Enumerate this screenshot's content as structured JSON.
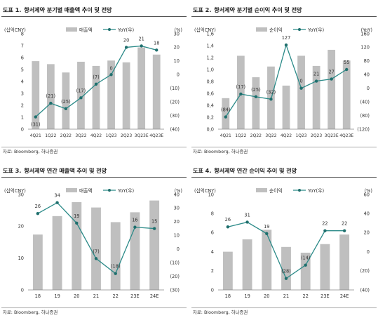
{
  "colors": {
    "bar": "#bfbfbf",
    "line": "#2b8a88",
    "marker": "#1f6f6d",
    "axis_text": "#333333"
  },
  "source_label": "자료: Bloomberg, 하나증권",
  "chart_data": [
    {
      "type": "bar+line",
      "title_num": "도표 1.",
      "title": "향서제약 분기별 매출액 추이 및 전망",
      "ylabel": "(십억CNY)",
      "y2label": "(%)",
      "bar_name": "매출액",
      "line_name": "YoY(우)",
      "categories": [
        "4Q21",
        "1Q22",
        "2Q22",
        "3Q22",
        "4Q22",
        "1Q23",
        "2Q23",
        "3Q23E",
        "4Q23E"
      ],
      "bar_values": [
        5.7,
        5.45,
        4.75,
        5.65,
        5.3,
        5.75,
        5.6,
        6.85,
        6.25
      ],
      "line_values": [
        -31,
        -21,
        -25,
        -17,
        -7,
        0,
        20,
        21,
        18
      ],
      "line_labels": [
        "(31)",
        "(21)",
        "(25)",
        "(17)",
        "(7)",
        "0",
        "20",
        "21",
        "18"
      ],
      "ylim": [
        0,
        8
      ],
      "yticks": [
        0,
        1,
        2,
        3,
        4,
        5,
        6,
        7,
        8
      ],
      "y2lim": [
        -40,
        30
      ],
      "y2ticks": [
        -40,
        -30,
        -20,
        -10,
        0,
        10,
        20,
        30
      ],
      "y2ticklabels": [
        "(40)",
        "(30)",
        "(20)",
        "(10)",
        "0",
        "10",
        "20",
        "30"
      ],
      "label_offsets": [
        [
          0,
          9
        ],
        [
          0,
          -8
        ],
        [
          0,
          -8
        ],
        [
          0,
          -8
        ],
        [
          0,
          -8
        ],
        [
          0,
          -7
        ],
        [
          0,
          -8
        ],
        [
          0,
          -8
        ],
        [
          0,
          -8
        ]
      ],
      "grid": false
    },
    {
      "type": "bar+line",
      "title_num": "도표 2.",
      "title": "향서제약 분기별 순이익 추이 및 전망",
      "ylabel": "(십억CNY)",
      "y2label": "(YoY)",
      "bar_name": "순이익",
      "line_name": "YoY(우)",
      "categories": [
        "4Q21",
        "1Q22",
        "2Q22",
        "3Q22",
        "4Q22",
        "1Q23",
        "2Q23",
        "3Q23E",
        "4Q23E"
      ],
      "bar_values": [
        0.52,
        1.23,
        0.87,
        1.05,
        0.73,
        1.23,
        1.06,
        1.33,
        1.15
      ],
      "line_values": [
        -84,
        -17,
        -25,
        -32,
        127,
        0,
        21,
        27,
        55
      ],
      "line_labels": [
        "(84)",
        "(17)",
        "(25)",
        "(32)",
        "127",
        "0",
        "21",
        "27",
        "55"
      ],
      "ylim": [
        0,
        1.6
      ],
      "yticks": [
        0,
        0.2,
        0.4,
        0.6,
        0.8,
        1.0,
        1.2,
        1.4,
        1.6
      ],
      "yticklabels": [
        "0,0",
        "0,2",
        "0,4",
        "0,6",
        "0,8",
        "1,0",
        "1,2",
        "1,4",
        "1,6"
      ],
      "y2lim": [
        -120,
        160
      ],
      "y2ticks": [
        -120,
        -80,
        -40,
        0,
        40,
        80,
        120,
        160
      ],
      "y2ticklabels": [
        "(120)",
        "(80)",
        "(40)",
        "0",
        "40",
        "80",
        "120",
        "160"
      ],
      "label_offsets": [
        [
          0,
          -8
        ],
        [
          0,
          -8
        ],
        [
          0,
          -8
        ],
        [
          0,
          -8
        ],
        [
          0,
          -8
        ],
        [
          0,
          -8
        ],
        [
          0,
          -8
        ],
        [
          0,
          -8
        ],
        [
          0,
          -8
        ]
      ],
      "grid": false
    },
    {
      "type": "bar+line",
      "title_num": "도표 3.",
      "title": "향서제약 연간 매출액 추이 및 전망",
      "ylabel": "(십억CNY)",
      "y2label": "(%)",
      "bar_name": "매출액",
      "line_name": "YoY(우)",
      "categories": [
        "18",
        "19",
        "20",
        "21",
        "22",
        "23E",
        "24E"
      ],
      "bar_values": [
        17.4,
        23.2,
        27.6,
        25.9,
        21.3,
        24.4,
        28.1
      ],
      "line_values": [
        26,
        34,
        19,
        -7,
        -18,
        16,
        15
      ],
      "line_labels": [
        "26",
        "34",
        "19",
        "(7)",
        "(18)",
        "16",
        "15"
      ],
      "ylim": [
        0,
        30
      ],
      "yticks": [
        0,
        10,
        20,
        30
      ],
      "y2lim": [
        -30,
        40
      ],
      "y2ticks": [
        -30,
        -20,
        -10,
        0,
        10,
        20,
        30,
        40
      ],
      "y2ticklabels": [
        "(30)",
        "(20)",
        "(10)",
        "0",
        "10",
        "20",
        "30",
        "40"
      ],
      "label_offsets": [
        [
          0,
          -8
        ],
        [
          0,
          -8
        ],
        [
          0,
          -8
        ],
        [
          0,
          -8
        ],
        [
          0,
          -8
        ],
        [
          0,
          -8
        ],
        [
          0,
          -8
        ]
      ],
      "grid": false
    },
    {
      "type": "bar+line",
      "title_num": "도표 4.",
      "title": "향서제약 연간 순이익 추이 및 전망",
      "ylabel": "(십억CNY)",
      "y2label": "(%)",
      "bar_name": "순이익",
      "line_name": "YoY(우)",
      "categories": [
        "18",
        "19",
        "20",
        "21",
        "22",
        "23E",
        "24E"
      ],
      "bar_values": [
        4.0,
        5.3,
        6.3,
        4.5,
        3.9,
        4.8,
        5.8
      ],
      "line_values": [
        26,
        31,
        19,
        -28,
        -14,
        22,
        22
      ],
      "line_labels": [
        "26",
        "31",
        "19",
        "(28)",
        "(14)",
        "22",
        "22"
      ],
      "ylim": [
        0,
        10
      ],
      "yticks": [
        0,
        2,
        4,
        6,
        8,
        10
      ],
      "y2lim": [
        -40,
        60
      ],
      "y2ticks": [
        -40,
        -20,
        0,
        20,
        40,
        60
      ],
      "y2ticklabels": [
        "(40)",
        "(20)",
        "0",
        "20",
        "40",
        "60"
      ],
      "label_offsets": [
        [
          0,
          -8
        ],
        [
          0,
          -8
        ],
        [
          0,
          -8
        ],
        [
          0,
          -8
        ],
        [
          0,
          -8
        ],
        [
          0,
          -8
        ],
        [
          0,
          -8
        ]
      ],
      "grid": false
    }
  ]
}
